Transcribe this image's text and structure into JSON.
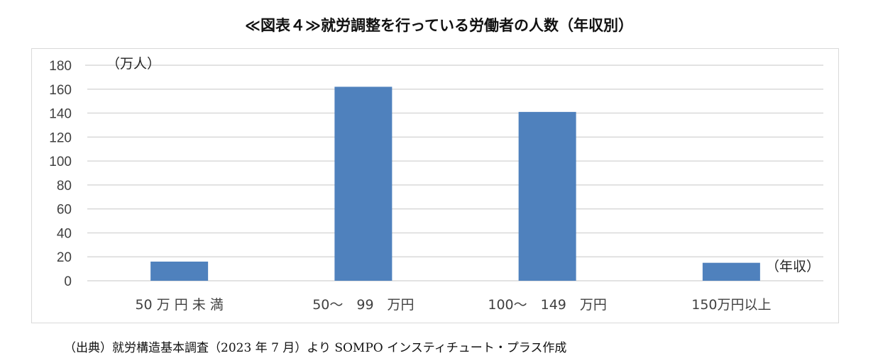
{
  "title": "≪図表４≫就労調整を行っている労働者の人数（年収別）",
  "source": "（出典）就労構造基本調査（2023 年 7 月）より SOMPO インスティチュート・プラス作成",
  "chart_data": {
    "type": "bar",
    "categories": [
      "50 万 円 未 満",
      "50～　99　万円",
      "100～　149　万円",
      "150万円以上"
    ],
    "values": [
      16,
      162,
      141,
      15
    ],
    "ylim": [
      0,
      180
    ],
    "yticks": [
      0,
      20,
      40,
      60,
      80,
      100,
      120,
      140,
      160,
      180
    ],
    "yunit": "（万人）",
    "xunit": "（年収）",
    "grid": true,
    "legend": "none",
    "bar_color": "#4f81bd",
    "grid_color": "#d9d9d9"
  }
}
